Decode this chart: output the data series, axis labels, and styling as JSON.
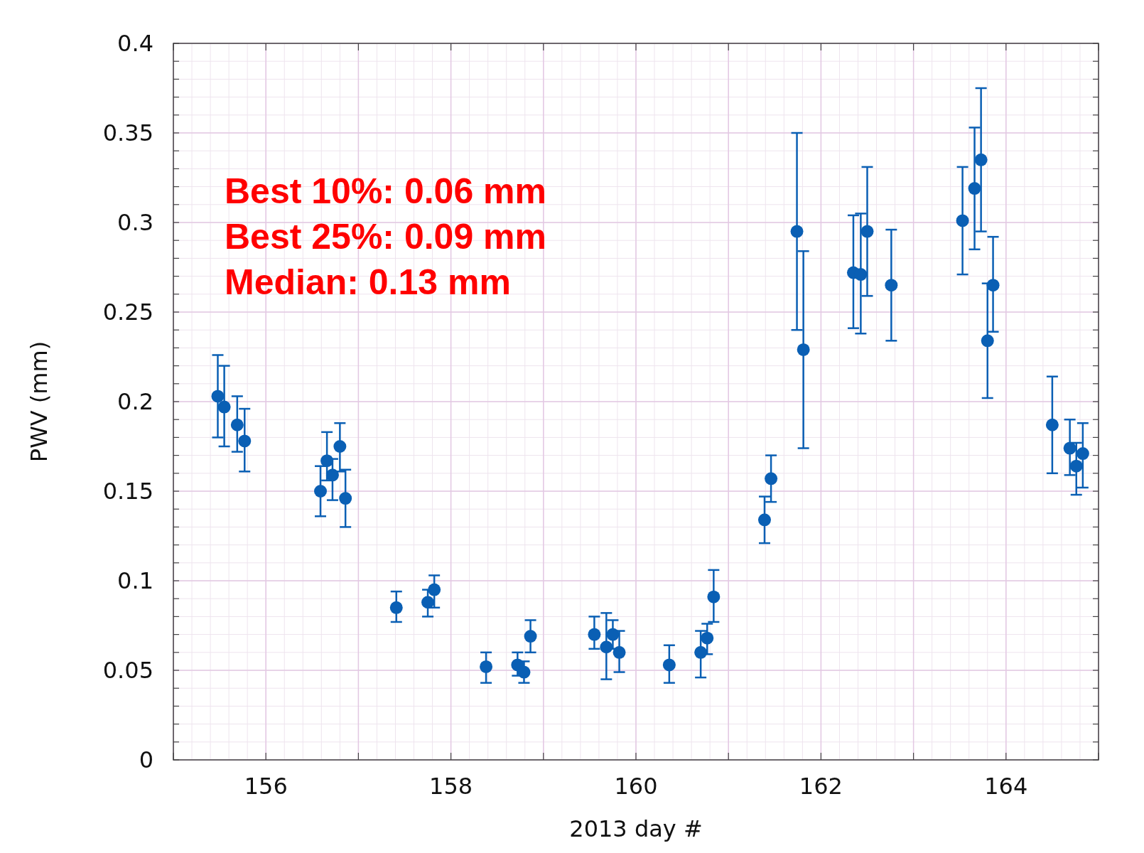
{
  "chart_data": {
    "type": "scatter",
    "xlabel": "2013 day #",
    "ylabel": "PWV (mm)",
    "xlim": [
      155,
      165
    ],
    "ylim": [
      0,
      0.4
    ],
    "xticks": [
      156,
      158,
      160,
      162,
      164
    ],
    "yticks": [
      0,
      0.05,
      0.1,
      0.15,
      0.2,
      0.25,
      0.3,
      0.35,
      0.4
    ],
    "grid": true,
    "marker": "circle",
    "annotations": [
      "Best 10%: 0.06 mm",
      "Best 25%: 0.09 mm",
      "Median: 0.13 mm"
    ],
    "series": [
      {
        "color": "#0a5fb4",
        "x": [
          155.48,
          155.55,
          155.69,
          155.77,
          156.59,
          156.66,
          156.72,
          156.8,
          156.86,
          157.41,
          157.75,
          157.82,
          158.38,
          158.72,
          158.79,
          158.86,
          159.55,
          159.68,
          159.75,
          159.82,
          160.36,
          160.7,
          160.77,
          160.84,
          161.39,
          161.46,
          161.74,
          161.81,
          162.35,
          162.43,
          162.5,
          162.76,
          163.53,
          163.66,
          163.73,
          163.8,
          163.86,
          164.5,
          164.69,
          164.76,
          164.83
        ],
        "values": [
          0.203,
          0.197,
          0.187,
          0.178,
          0.15,
          0.167,
          0.159,
          0.175,
          0.146,
          0.085,
          0.088,
          0.095,
          0.052,
          0.053,
          0.049,
          0.069,
          0.07,
          0.063,
          0.07,
          0.06,
          0.053,
          0.06,
          0.068,
          0.091,
          0.134,
          0.157,
          0.295,
          0.229,
          0.272,
          0.271,
          0.295,
          0.265,
          0.301,
          0.319,
          0.335,
          0.234,
          0.265,
          0.187,
          0.174,
          0.164,
          0.171
        ],
        "errors": [
          [
            0.18,
            0.226
          ],
          [
            0.175,
            0.22
          ],
          [
            0.172,
            0.203
          ],
          [
            0.161,
            0.196
          ],
          [
            0.136,
            0.164
          ],
          [
            0.156,
            0.183
          ],
          [
            0.145,
            0.168
          ],
          [
            0.161,
            0.188
          ],
          [
            0.13,
            0.162
          ],
          [
            0.077,
            0.094
          ],
          [
            0.08,
            0.095
          ],
          [
            0.085,
            0.103
          ],
          [
            0.043,
            0.06
          ],
          [
            0.047,
            0.06
          ],
          [
            0.043,
            0.055
          ],
          [
            0.06,
            0.078
          ],
          [
            0.062,
            0.08
          ],
          [
            0.045,
            0.082
          ],
          [
            0.062,
            0.078
          ],
          [
            0.049,
            0.072
          ],
          [
            0.043,
            0.064
          ],
          [
            0.046,
            0.072
          ],
          [
            0.059,
            0.076
          ],
          [
            0.077,
            0.106
          ],
          [
            0.121,
            0.147
          ],
          [
            0.144,
            0.17
          ],
          [
            0.24,
            0.35
          ],
          [
            0.174,
            0.284
          ],
          [
            0.241,
            0.304
          ],
          [
            0.238,
            0.305
          ],
          [
            0.259,
            0.331
          ],
          [
            0.234,
            0.296
          ],
          [
            0.271,
            0.331
          ],
          [
            0.285,
            0.353
          ],
          [
            0.295,
            0.375
          ],
          [
            0.202,
            0.266
          ],
          [
            0.239,
            0.292
          ],
          [
            0.16,
            0.214
          ],
          [
            0.159,
            0.19
          ],
          [
            0.148,
            0.177
          ],
          [
            0.152,
            0.188
          ]
        ]
      }
    ]
  }
}
